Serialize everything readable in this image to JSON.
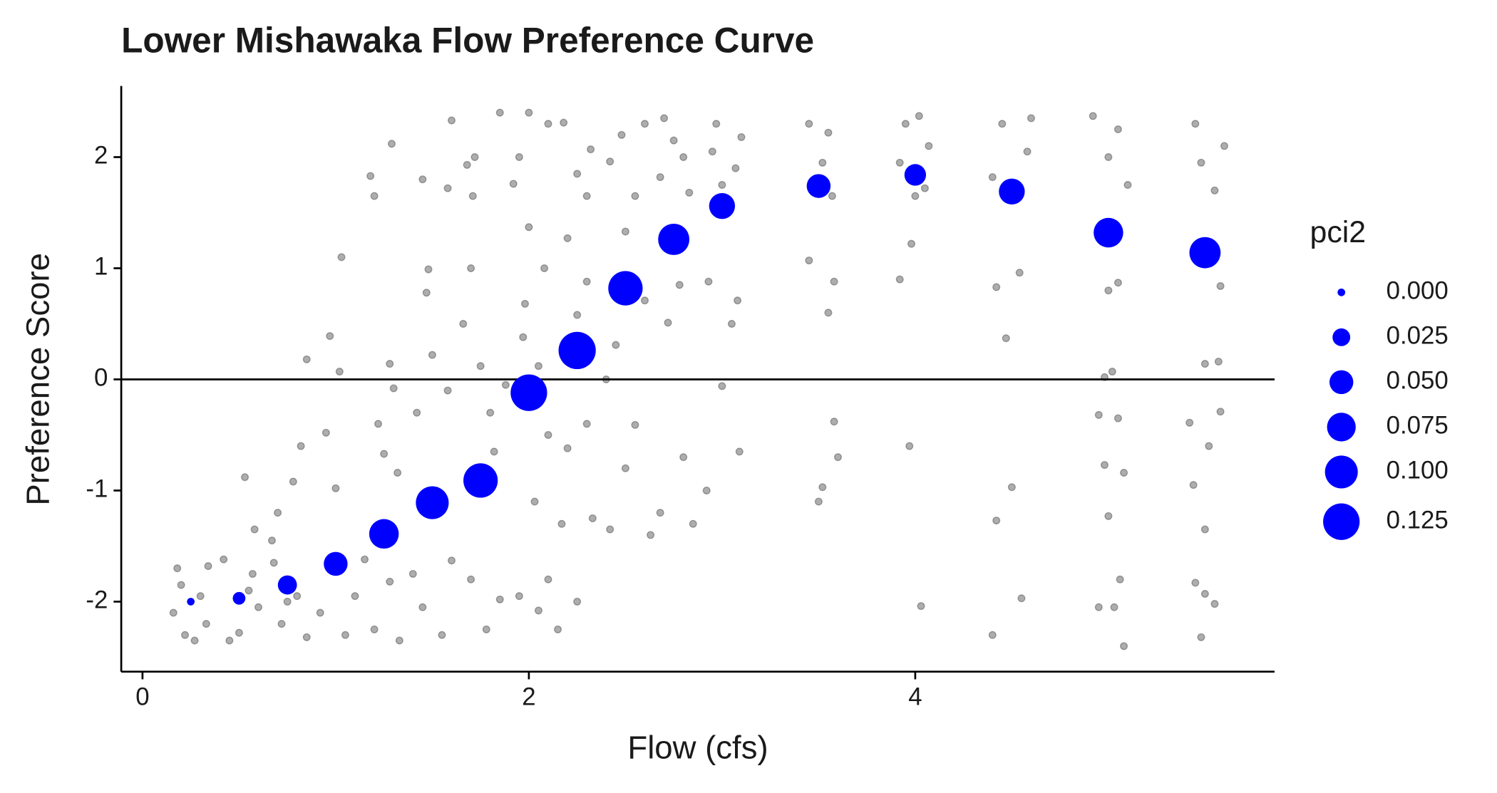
{
  "chart_data": {
    "type": "scatter",
    "title": "Lower Mishawaka Flow Preference Curve",
    "x_label": "Flow (cfs)",
    "y_label": "Preference Score",
    "xlim": [
      -0.11,
      5.86
    ],
    "ylim": [
      -2.63,
      2.64
    ],
    "xticks": [
      0,
      2,
      4
    ],
    "yticks": [
      -2,
      -1,
      0,
      1,
      2
    ],
    "hline": 0,
    "series": [
      {
        "color": "#000000",
        "opacity": 0.32,
        "x": [
          0.18,
          0.22,
          0.3,
          0.33,
          0.2,
          0.27,
          0.16,
          0.34,
          0.42,
          0.5,
          0.55,
          0.6,
          0.45,
          0.57,
          0.53,
          0.58,
          0.68,
          0.72,
          0.8,
          0.85,
          0.7,
          0.78,
          0.82,
          0.75,
          0.67,
          0.92,
          0.98,
          1.05,
          1.1,
          0.85,
          0.97,
          1.02,
          0.95,
          1.0,
          1.03,
          1.15,
          1.2,
          1.28,
          1.33,
          1.22,
          1.3,
          1.28,
          1.18,
          1.2,
          1.29,
          1.25,
          1.32,
          1.4,
          1.45,
          1.55,
          1.6,
          1.42,
          1.5,
          1.58,
          1.48,
          1.47,
          1.58,
          1.45,
          1.6,
          1.52,
          1.7,
          1.78,
          1.85,
          1.66,
          1.75,
          1.8,
          1.7,
          1.68,
          1.72,
          1.71,
          1.85,
          1.82,
          1.88,
          1.95,
          2.05,
          2.1,
          1.97,
          2.05,
          2.1,
          1.98,
          2.0,
          2.08,
          2.0,
          1.95,
          2.1,
          1.92,
          2.03,
          2.15,
          2.25,
          2.2,
          2.3,
          2.25,
          2.2,
          2.3,
          2.18,
          2.25,
          2.32,
          2.17,
          2.33,
          2.3,
          2.42,
          2.5,
          2.55,
          2.45,
          2.6,
          2.5,
          2.42,
          2.6,
          2.55,
          2.48,
          2.63,
          2.4,
          2.68,
          2.8,
          2.72,
          2.78,
          2.68,
          2.75,
          2.83,
          2.7,
          2.85,
          2.8,
          2.92,
          3.0,
          3.05,
          2.93,
          3.08,
          3.0,
          2.97,
          3.1,
          3.07,
          3.09,
          2.95,
          3.45,
          3.58,
          3.55,
          3.58,
          3.52,
          3.5,
          3.45,
          3.52,
          3.57,
          3.48,
          3.55,
          3.6,
          3.92,
          3.98,
          3.97,
          4.03,
          3.95,
          4.02,
          4.05,
          3.92,
          4.07,
          4.0,
          4.42,
          4.47,
          4.54,
          4.5,
          4.42,
          4.4,
          4.55,
          4.45,
          4.58,
          4.52,
          4.4,
          4.6,
          4.98,
          5.02,
          5.05,
          5.0,
          4.95,
          5.05,
          4.98,
          5.0,
          5.08,
          5.06,
          4.95,
          5.03,
          5.08,
          4.92,
          5.0,
          5.1,
          5.05,
          5.45,
          5.5,
          5.48,
          5.55,
          5.44,
          5.5,
          5.42,
          5.58,
          5.5,
          5.57,
          5.58,
          5.45,
          5.55,
          5.6,
          5.48,
          5.52
        ],
        "y": [
          -1.7,
          -2.3,
          -1.95,
          -2.2,
          -1.85,
          -2.35,
          -2.1,
          -1.68,
          -1.62,
          -2.28,
          -1.9,
          -2.05,
          -2.35,
          -1.75,
          -0.88,
          -1.35,
          -1.65,
          -2.2,
          -1.95,
          -2.32,
          -1.2,
          -0.92,
          -0.6,
          -2.0,
          -1.45,
          -2.1,
          -1.7,
          -2.3,
          -1.95,
          0.18,
          0.39,
          0.07,
          -0.48,
          -0.98,
          1.1,
          -1.62,
          -2.25,
          -1.82,
          -2.35,
          -0.4,
          -0.08,
          0.14,
          1.83,
          1.65,
          2.12,
          -0.67,
          -0.84,
          -1.75,
          -2.05,
          -2.3,
          -1.63,
          -0.3,
          0.22,
          -0.1,
          0.99,
          0.78,
          1.72,
          1.8,
          2.33,
          -1.0,
          -1.8,
          -2.25,
          -1.98,
          0.5,
          0.12,
          -0.3,
          1.0,
          1.93,
          2.0,
          1.65,
          2.4,
          -0.65,
          -0.05,
          -1.95,
          -2.08,
          -1.8,
          0.38,
          0.12,
          -0.5,
          0.68,
          1.37,
          1.0,
          2.4,
          2.0,
          2.3,
          1.76,
          -1.1,
          -2.25,
          -2.0,
          -0.62,
          -0.4,
          0.58,
          1.27,
          0.88,
          2.31,
          1.85,
          2.07,
          -1.3,
          -1.25,
          1.65,
          -1.35,
          -0.8,
          -0.41,
          0.31,
          0.71,
          1.33,
          1.96,
          2.3,
          1.65,
          2.2,
          -1.4,
          0.0,
          -1.2,
          -0.7,
          0.51,
          0.85,
          1.82,
          2.15,
          1.68,
          2.35,
          -1.3,
          2.0,
          -1.0,
          -0.06,
          0.5,
          0.88,
          0.71,
          1.75,
          2.3,
          2.18,
          1.9,
          -0.65,
          2.05,
          1.07,
          0.88,
          0.6,
          -0.38,
          -0.97,
          -1.1,
          2.3,
          1.95,
          1.65,
          1.75,
          2.22,
          -0.7,
          0.9,
          1.22,
          -0.6,
          -2.04,
          2.3,
          2.37,
          1.72,
          1.95,
          2.1,
          1.65,
          0.83,
          0.37,
          0.96,
          -0.97,
          -1.27,
          -2.3,
          -1.97,
          2.3,
          2.05,
          1.65,
          1.82,
          2.35,
          0.02,
          0.07,
          0.87,
          0.8,
          -0.32,
          -0.35,
          -0.77,
          -1.23,
          -0.84,
          -1.8,
          -2.05,
          -2.05,
          -2.4,
          2.37,
          2.0,
          1.75,
          2.25,
          -1.83,
          -1.93,
          -2.32,
          -2.02,
          -0.95,
          -1.35,
          -0.39,
          -0.29,
          0.14,
          0.16,
          0.84,
          2.3,
          1.7,
          2.1,
          1.95,
          -0.6
        ]
      },
      {
        "color": "#0000ff",
        "x": [
          0.25,
          0.5,
          0.75,
          1.0,
          1.25,
          1.5,
          1.75,
          2.0,
          2.25,
          2.5,
          2.75,
          3.0,
          3.5,
          4.0,
          4.5,
          5.0,
          5.5
        ],
        "y": [
          -2.0,
          -1.97,
          -1.85,
          -1.66,
          -1.39,
          -1.11,
          -0.91,
          -0.12,
          0.26,
          0.82,
          1.26,
          1.56,
          1.74,
          1.84,
          1.69,
          1.32,
          1.14
        ],
        "size": [
          0.0,
          0.01,
          0.03,
          0.05,
          0.08,
          0.1,
          0.11,
          0.125,
          0.13,
          0.11,
          0.09,
          0.06,
          0.05,
          0.04,
          0.06,
          0.08,
          0.09
        ]
      }
    ],
    "size_legend": {
      "title": "pci2",
      "values": [
        {
          "value": 0,
          "label": "0.000"
        },
        {
          "value": 0.025,
          "label": "0.025"
        },
        {
          "value": 0.05,
          "label": "0.050"
        },
        {
          "value": 0.075,
          "label": "0.075"
        },
        {
          "value": 0.1,
          "label": "0.100"
        },
        {
          "value": 0.125,
          "label": "0.125"
        }
      ],
      "color": "#0000ff"
    }
  }
}
